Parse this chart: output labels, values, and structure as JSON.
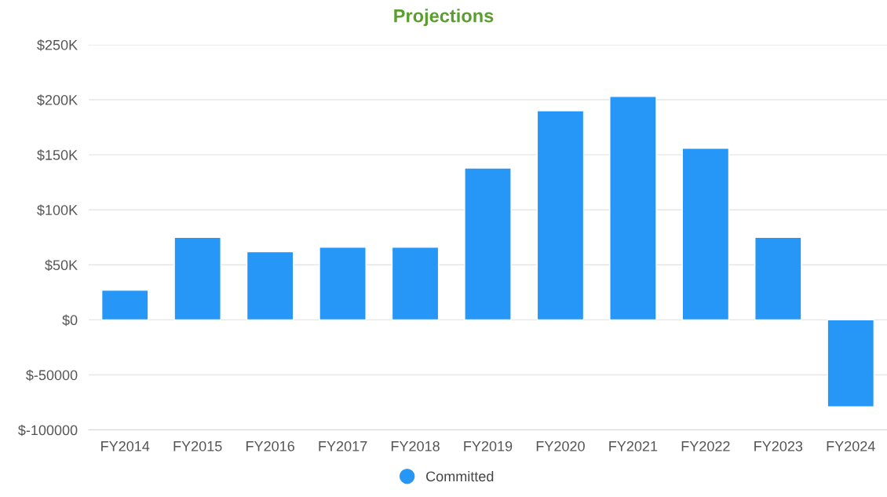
{
  "chart_data": {
    "type": "bar",
    "title": "Projections",
    "categories": [
      "FY2014",
      "FY2015",
      "FY2016",
      "FY2017",
      "FY2018",
      "FY2019",
      "FY2020",
      "FY2021",
      "FY2022",
      "FY2023",
      "FY2024"
    ],
    "series": [
      {
        "name": "Committed",
        "color": "#2797f7",
        "values": [
          27000,
          75000,
          62000,
          66000,
          66000,
          138000,
          190000,
          203000,
          156000,
          75000,
          -79000
        ]
      }
    ],
    "ylim": [
      -100000,
      250000
    ],
    "yticks": [
      {
        "value": -100000,
        "label": "$-100000"
      },
      {
        "value": -50000,
        "label": "$-50000"
      },
      {
        "value": 0,
        "label": "$0"
      },
      {
        "value": 50000,
        "label": "$50K"
      },
      {
        "value": 100000,
        "label": "$100K"
      },
      {
        "value": 150000,
        "label": "$150K"
      },
      {
        "value": 200000,
        "label": "$200K"
      },
      {
        "value": 250000,
        "label": "$250K"
      }
    ],
    "grid": "y",
    "legend": "bottom"
  }
}
